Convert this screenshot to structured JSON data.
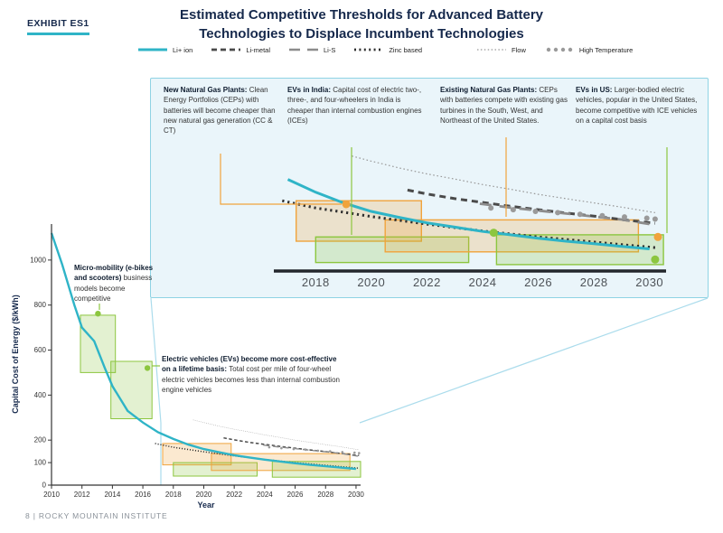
{
  "header": {
    "exhibit_label": "EXHIBIT ES1",
    "title_line1": "Estimated Competitive Thresholds for Advanced Battery",
    "title_line2": "Technologies to Displace Incumbent Technologies"
  },
  "footer": "8 | ROCKY MOUNTAIN INSTITUTE",
  "colors": {
    "teal": "#2fb4c7",
    "green": "#8cc63f",
    "orange": "#f0a33c",
    "navy": "#16294c",
    "inset_bg": "#eaf5fa",
    "inset_border": "#8fd3e4"
  },
  "legend": [
    {
      "label": "Li+ ion",
      "style": "solid",
      "color": "#2fb4c7"
    },
    {
      "label": "Li-metal",
      "style": "dash-thick",
      "color": "#4a4a4a"
    },
    {
      "label": "Li-S",
      "style": "dash-long",
      "color": "#8c8c8c"
    },
    {
      "label": "Zinc based",
      "style": "dot-thick",
      "color": "#2e2e2e"
    },
    {
      "label": "Flow",
      "style": "dot-thin",
      "color": "#999999"
    },
    {
      "label": "High Temperature",
      "style": "dots",
      "color": "#9a9a9a"
    }
  ],
  "annotations": {
    "micro_mobility": {
      "lead": "Micro-mobility (e-bikes and scooters)",
      "body": "business models become competitive"
    },
    "ev_lifetime": {
      "lead": "Electric vehicles (EVs) become more cost-effective on a lifetime basis:",
      "body": "Total cost per mile of four-wheel electric vehicles becomes less than internal combustion engine vehicles"
    },
    "new_natural_gas": {
      "lead": "New Natural Gas Plants:",
      "body": "Clean Energy Portfolios (CEPs) with batteries will become cheaper than new natural gas generation (CC & CT)"
    },
    "evs_india": {
      "lead": "EVs in India:",
      "body": "Capital cost of electric two-, three-, and four-wheelers in India is cheaper than internal combustion engines (ICEs)"
    },
    "existing_natural_gas": {
      "lead": "Existing Natural Gas Plants:",
      "body": "CEPs with batteries compete with existing gas turbines in the South, West, and Northeast of the United States."
    },
    "evs_us": {
      "lead": "EVs in US:",
      "body": "Larger-bodied electric vehicles, popular in the United States, become competitive with ICE vehicles on a capital cost basis"
    }
  },
  "chart_data": {
    "type": "line",
    "title": "Estimated Competitive Thresholds for Advanced Battery Technologies to Displace Incumbent Technologies",
    "xlabel": "Year",
    "ylabel": "Capital Cost of Energy ($/kWh)",
    "main_axis": {
      "xlim": [
        2010,
        2030.3
      ],
      "ylim": [
        0,
        1160
      ],
      "xticks": [
        2010,
        2012,
        2014,
        2016,
        2018,
        2020,
        2022,
        2024,
        2026,
        2028,
        2030
      ],
      "yticks": [
        0,
        100,
        200,
        400,
        600,
        800,
        1000
      ]
    },
    "inset_axis": {
      "xlim": [
        2016.4,
        2031.6
      ],
      "ylim": [
        20,
        300
      ],
      "xticks": [
        2018,
        2020,
        2022,
        2024,
        2026,
        2028,
        2030
      ]
    },
    "series": [
      {
        "name": "Flow",
        "style": "dot-thin",
        "color": "#999999",
        "points": [
          [
            2019.3,
            290
          ],
          [
            2020,
            278
          ],
          [
            2021,
            262
          ],
          [
            2022,
            248
          ],
          [
            2023,
            236
          ],
          [
            2024,
            223
          ],
          [
            2025,
            212
          ],
          [
            2026,
            200
          ],
          [
            2027,
            190
          ],
          [
            2028,
            180
          ],
          [
            2029,
            170
          ],
          [
            2030.2,
            157
          ]
        ]
      },
      {
        "name": "Li-metal",
        "style": "dash-thick",
        "color": "#4a4a4a",
        "points": [
          [
            2021.3,
            210
          ],
          [
            2022,
            201
          ],
          [
            2023,
            190
          ],
          [
            2024,
            181
          ],
          [
            2025,
            172
          ],
          [
            2026,
            164
          ],
          [
            2027,
            156
          ],
          [
            2028,
            149
          ],
          [
            2029,
            141
          ],
          [
            2030.2,
            132
          ]
        ]
      },
      {
        "name": "Li-S",
        "style": "dash-long",
        "color": "#8c8c8c",
        "points": [
          [
            2023.9,
            178
          ],
          [
            2025,
            169
          ],
          [
            2026,
            162
          ],
          [
            2027,
            155
          ],
          [
            2028,
            148
          ],
          [
            2029,
            141
          ],
          [
            2030.2,
            128
          ]
        ]
      },
      {
        "name": "High Temperature",
        "style": "dots",
        "color": "#9a9a9a",
        "points": [
          [
            2024.3,
            168
          ],
          [
            2025.1,
            164
          ],
          [
            2025.9,
            160
          ],
          [
            2026.7,
            157
          ],
          [
            2027.5,
            153
          ],
          [
            2028.3,
            150
          ],
          [
            2029.1,
            147
          ],
          [
            2029.9,
            144
          ],
          [
            2030.2,
            142
          ]
        ]
      },
      {
        "name": "Zinc based",
        "style": "dot-thick",
        "color": "#2e2e2e",
        "points": [
          [
            2016.8,
            185
          ],
          [
            2018,
            168
          ],
          [
            2019,
            158
          ],
          [
            2020,
            148
          ],
          [
            2021,
            139
          ],
          [
            2022,
            130
          ],
          [
            2023,
            122
          ],
          [
            2024,
            114
          ],
          [
            2025,
            107
          ],
          [
            2026,
            100
          ],
          [
            2027,
            94
          ],
          [
            2028,
            88
          ],
          [
            2029,
            82
          ],
          [
            2030.2,
            75
          ]
        ]
      },
      {
        "name": "Li+ ion",
        "style": "solid",
        "color": "#2fb4c7",
        "points": [
          [
            2010,
            1120
          ],
          [
            2010.7,
            980
          ],
          [
            2011.5,
            800
          ],
          [
            2012,
            700
          ],
          [
            2012.8,
            640
          ],
          [
            2013.5,
            520
          ],
          [
            2014,
            440
          ],
          [
            2015,
            330
          ],
          [
            2016,
            278
          ],
          [
            2017,
            235
          ],
          [
            2018,
            205
          ],
          [
            2019,
            180
          ],
          [
            2020,
            160
          ],
          [
            2021,
            146
          ],
          [
            2022,
            133
          ],
          [
            2023,
            123
          ],
          [
            2024,
            113
          ],
          [
            2025,
            105
          ],
          [
            2026,
            97
          ],
          [
            2027,
            90
          ],
          [
            2028,
            84
          ],
          [
            2029,
            78
          ],
          [
            2030,
            72
          ]
        ]
      }
    ],
    "boxes": [
      {
        "name": "micro-mobility",
        "color": "green",
        "x": [
          2011.9,
          2014.2
        ],
        "y": [
          500,
          755
        ],
        "main_only": true
      },
      {
        "name": "ev-lifetime",
        "color": "green",
        "x": [
          2013.9,
          2016.6
        ],
        "y": [
          295,
          550
        ],
        "main_only": true
      },
      {
        "name": "new-natural-gas",
        "color": "orange",
        "x": [
          2017.3,
          2021.8
        ],
        "y": [
          90,
          185
        ]
      },
      {
        "name": "evs-india",
        "color": "green",
        "x": [
          2018,
          2023.5
        ],
        "y": [
          40,
          100
        ]
      },
      {
        "name": "existing-natural-gas",
        "color": "orange",
        "x": [
          2020.5,
          2029.6
        ],
        "y": [
          65,
          140
        ]
      },
      {
        "name": "evs-us",
        "color": "green",
        "x": [
          2024.5,
          2030.5
        ],
        "y": [
          35,
          105
        ]
      }
    ],
    "markers": [
      {
        "chart": "main",
        "x": 2013.05,
        "y": 762,
        "color": "green"
      },
      {
        "chart": "main",
        "x": 2016.3,
        "y": 520,
        "color": "green"
      },
      {
        "chart": "inset",
        "x": 2019.1,
        "y": 177,
        "color": "orange"
      },
      {
        "chart": "inset",
        "x": 2024.4,
        "y": 110,
        "color": "green"
      },
      {
        "chart": "inset",
        "x": 2030.3,
        "y": 100,
        "color": "orange"
      },
      {
        "chart": "inset",
        "x": 2030.2,
        "y": 47,
        "color": "green"
      }
    ]
  }
}
